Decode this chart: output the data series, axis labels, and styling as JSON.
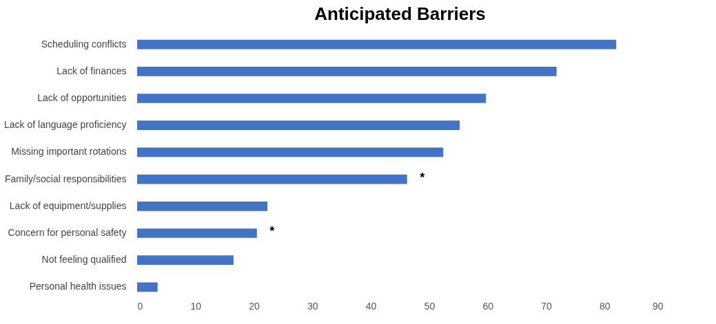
{
  "chart_data": {
    "type": "bar",
    "orientation": "horizontal",
    "title": "Anticipated Barriers",
    "categories": [
      "Scheduling conflicts",
      "Lack of finances",
      "Lack of opportunities",
      "Lack of language proficiency",
      "Missing important rotations",
      "Family/social responsibilities",
      "Lack of equipment/supplies",
      "Concern for personal safety",
      "Not feeling qualified",
      "Personal health issues"
    ],
    "values": [
      82,
      71.8,
      59.7,
      55.2,
      52.4,
      46.2,
      22.3,
      20.5,
      16.5,
      3.5
    ],
    "color": "#4472c4",
    "xlim": [
      0,
      90
    ],
    "xticks": [
      0,
      10,
      20,
      30,
      40,
      50,
      60,
      70,
      80,
      90
    ],
    "grid": false,
    "annotations": [
      {
        "text": "*",
        "x": 46.2,
        "y": "Family/social responsibilities"
      },
      {
        "text": "*",
        "x": 20.5,
        "y": "Concern for personal safety"
      }
    ]
  }
}
